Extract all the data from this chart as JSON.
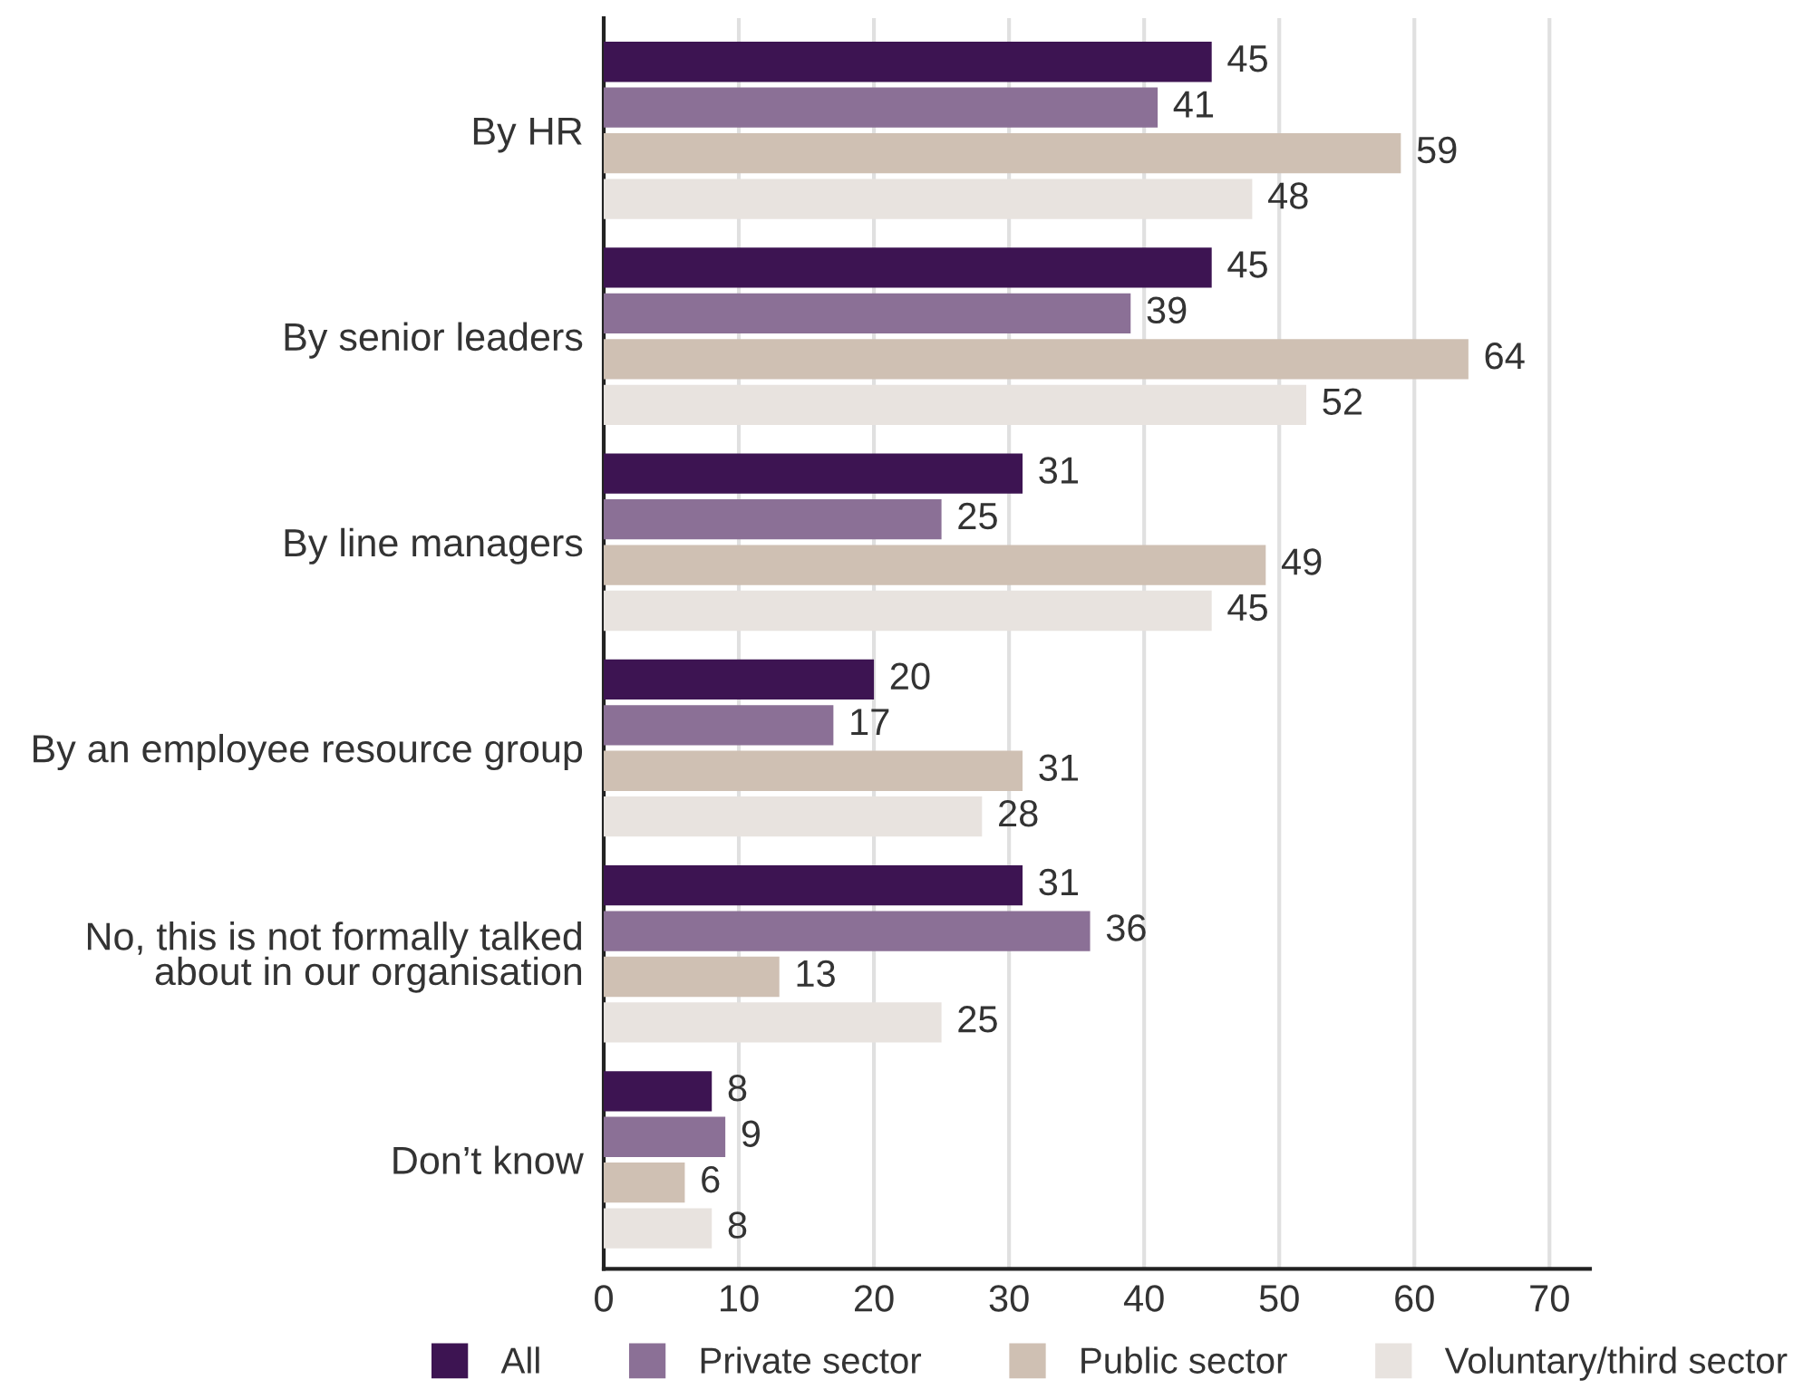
{
  "chart_data": {
    "type": "bar",
    "orientation": "horizontal",
    "categories": [
      "By HR",
      "By senior leaders",
      "By line managers",
      "By an employee resource group",
      "No, this is not formally talked\nabout in our organisation",
      "Don’t know"
    ],
    "series": [
      {
        "name": "All",
        "color": "#3d1452",
        "values": [
          45,
          45,
          31,
          20,
          31,
          8
        ]
      },
      {
        "name": "Private sector",
        "color": "#8b7096",
        "values": [
          41,
          39,
          25,
          17,
          36,
          9
        ]
      },
      {
        "name": "Public sector",
        "color": "#cfc0b3",
        "values": [
          59,
          64,
          49,
          31,
          13,
          6
        ]
      },
      {
        "name": "Voluntary/third sector",
        "color": "#e8e3df",
        "values": [
          48,
          52,
          45,
          28,
          25,
          8
        ]
      }
    ],
    "xlim": [
      0,
      73
    ],
    "xticks": [
      0,
      10,
      20,
      30,
      40,
      50,
      60,
      70
    ],
    "grid": "x",
    "legend": "bottom",
    "data_labels": true
  }
}
